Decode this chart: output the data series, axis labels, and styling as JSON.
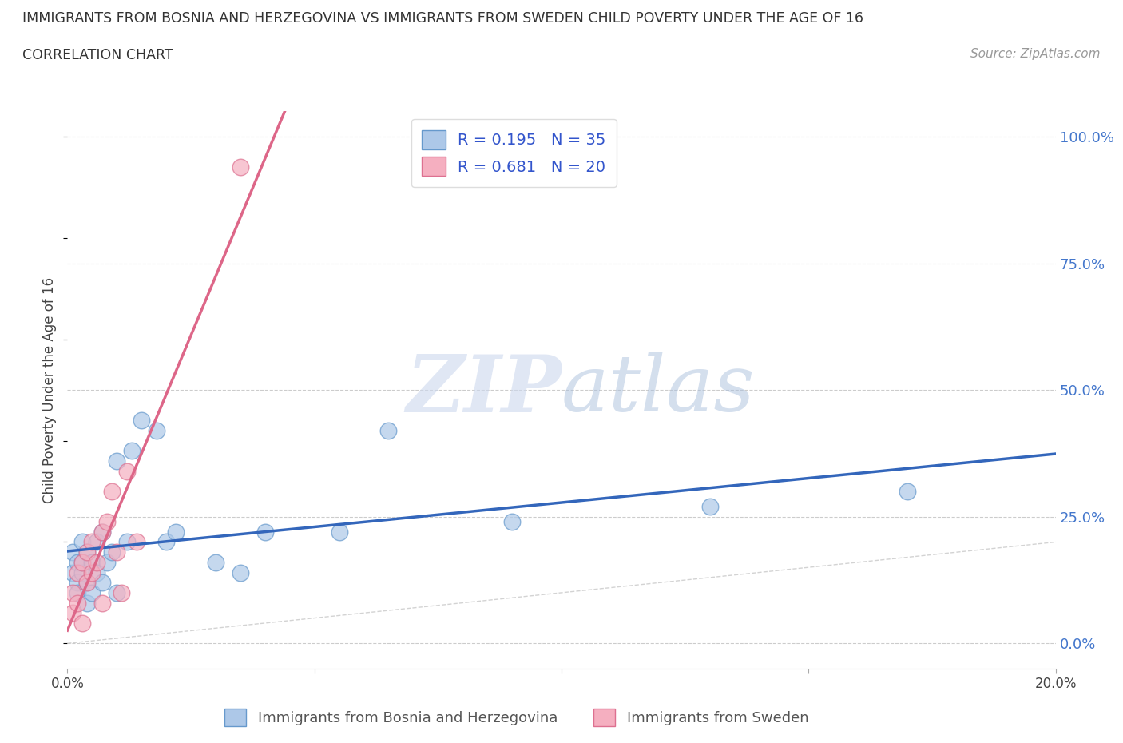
{
  "title": "IMMIGRANTS FROM BOSNIA AND HERZEGOVINA VS IMMIGRANTS FROM SWEDEN CHILD POVERTY UNDER THE AGE OF 16",
  "subtitle": "CORRELATION CHART",
  "source": "Source: ZipAtlas.com",
  "ylabel": "Child Poverty Under the Age of 16",
  "xlabel_bosnia": "Immigrants from Bosnia and Herzegovina",
  "xlabel_sweden": "Immigrants from Sweden",
  "xmin": 0.0,
  "xmax": 0.2,
  "ymin": -0.05,
  "ymax": 1.05,
  "yticks": [
    0.0,
    0.25,
    0.5,
    0.75,
    1.0
  ],
  "ytick_labels": [
    "0.0%",
    "25.0%",
    "50.0%",
    "75.0%",
    "100.0%"
  ],
  "xticks": [
    0.0,
    0.05,
    0.1,
    0.15,
    0.2
  ],
  "xtick_labels": [
    "0.0%",
    "",
    "",
    "",
    "20.0%"
  ],
  "bosnia_color": "#adc8e8",
  "sweden_color": "#f5afc0",
  "bosnia_edge": "#6699cc",
  "sweden_edge": "#dd7090",
  "trend_bosnia_color": "#3366bb",
  "trend_sweden_color": "#dd6688",
  "diagonal_color": "#c8c8c8",
  "R_bosnia": 0.195,
  "N_bosnia": 35,
  "R_sweden": 0.681,
  "N_sweden": 20,
  "legend_text_color": "#3355cc",
  "bosnia_x": [
    0.001,
    0.001,
    0.002,
    0.002,
    0.002,
    0.003,
    0.003,
    0.003,
    0.004,
    0.004,
    0.004,
    0.005,
    0.005,
    0.006,
    0.006,
    0.007,
    0.007,
    0.008,
    0.009,
    0.01,
    0.01,
    0.012,
    0.013,
    0.015,
    0.018,
    0.02,
    0.022,
    0.03,
    0.035,
    0.04,
    0.055,
    0.065,
    0.09,
    0.13,
    0.17
  ],
  "bosnia_y": [
    0.18,
    0.14,
    0.12,
    0.16,
    0.1,
    0.14,
    0.16,
    0.2,
    0.08,
    0.12,
    0.18,
    0.1,
    0.16,
    0.14,
    0.2,
    0.12,
    0.22,
    0.16,
    0.18,
    0.1,
    0.36,
    0.2,
    0.38,
    0.44,
    0.42,
    0.2,
    0.22,
    0.16,
    0.14,
    0.22,
    0.22,
    0.42,
    0.24,
    0.27,
    0.3
  ],
  "sweden_x": [
    0.001,
    0.001,
    0.002,
    0.002,
    0.003,
    0.003,
    0.004,
    0.004,
    0.005,
    0.005,
    0.006,
    0.007,
    0.007,
    0.008,
    0.009,
    0.01,
    0.011,
    0.012,
    0.014,
    0.035
  ],
  "sweden_y": [
    0.06,
    0.1,
    0.08,
    0.14,
    0.04,
    0.16,
    0.12,
    0.18,
    0.14,
    0.2,
    0.16,
    0.22,
    0.08,
    0.24,
    0.3,
    0.18,
    0.1,
    0.34,
    0.2,
    0.94
  ]
}
